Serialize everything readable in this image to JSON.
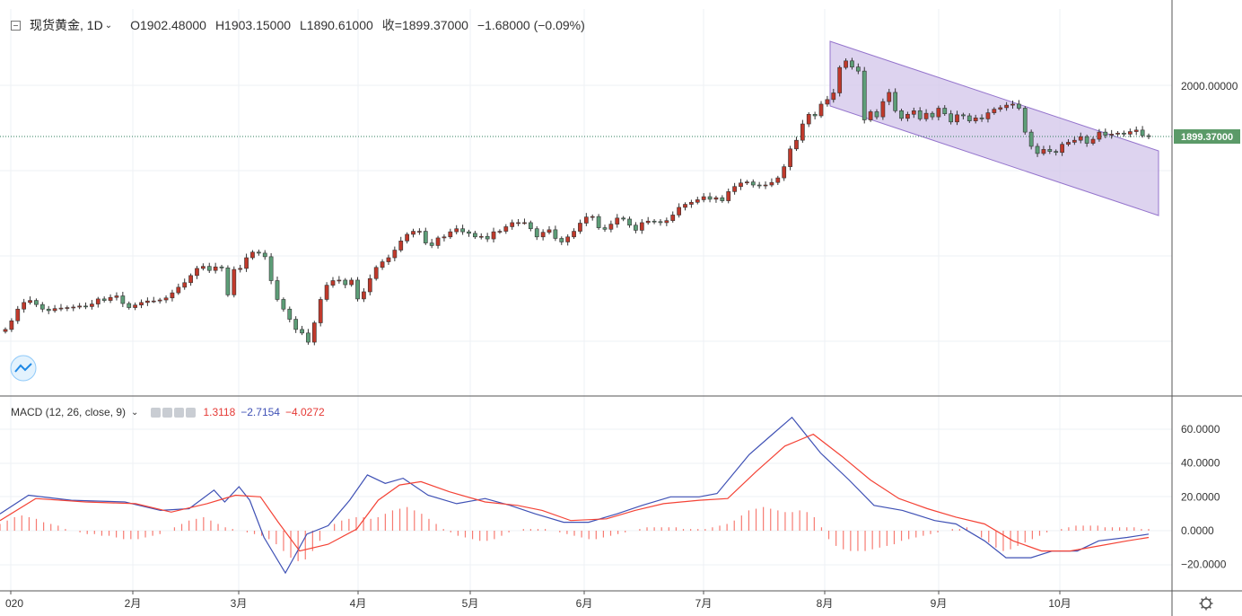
{
  "header": {
    "symbol": "现货黄金, 1D",
    "open": "O1902.48000",
    "high": "H1903.15000",
    "low": "L1890.61000",
    "close": "收=1899.37000",
    "change": "−1.68000 (−0.09%)"
  },
  "macd_header": {
    "label": "MACD (12, 26, close, 9)",
    "v1": "1.3118",
    "v2": "−2.7154",
    "v3": "−4.0272"
  },
  "price_axis": {
    "ticks": [
      "2000.00000"
    ],
    "last_label": "1899.37000"
  },
  "macd_axis": {
    "ticks": [
      "60.0000",
      "40.0000",
      "20.0000",
      "0.0000",
      "−20.0000"
    ]
  },
  "time_axis": {
    "ticks": [
      "020",
      "2月",
      "3月",
      "4月",
      "5月",
      "6月",
      "7月",
      "8月",
      "9月",
      "10月"
    ]
  },
  "colors": {
    "up": "#26a69a",
    "down": "#ef5350",
    "body_up": "#c0392b",
    "channel": "#d1c4e9",
    "macd_line": "#3f51b5",
    "signal_line": "#f44336",
    "last_price_bg": "#5b9a68"
  },
  "chart_data": [
    {
      "type": "candlestick",
      "title": "现货黄金, 1D",
      "ylabel": "",
      "ylim": [
        1450,
        2080
      ],
      "last_price": 1899.37,
      "series": [
        {
          "name": "现货黄金",
          "values": [
            1520,
            1537,
            1560,
            1573,
            1577,
            1569,
            1560,
            1557,
            1561,
            1562,
            1563,
            1564,
            1566,
            1565,
            1570,
            1580,
            1577,
            1583,
            1586,
            1571,
            1563,
            1568,
            1573,
            1576,
            1576,
            1578,
            1582,
            1592,
            1603,
            1612,
            1626,
            1640,
            1644,
            1636,
            1643,
            1641,
            1588,
            1638,
            1640,
            1661,
            1672,
            1670,
            1663,
            1616,
            1579,
            1560,
            1540,
            1520,
            1513,
            1495,
            1533,
            1579,
            1607,
            1616,
            1617,
            1608,
            1617,
            1580,
            1594,
            1620,
            1642,
            1653,
            1661,
            1676,
            1694,
            1707,
            1713,
            1713,
            1690,
            1685,
            1700,
            1702,
            1712,
            1718,
            1712,
            1709,
            1702,
            1703,
            1698,
            1712,
            1713,
            1722,
            1730,
            1730,
            1730,
            1718,
            1702,
            1711,
            1716,
            1699,
            1692,
            1702,
            1713,
            1729,
            1741,
            1742,
            1720,
            1717,
            1727,
            1739,
            1737,
            1725,
            1715,
            1730,
            1733,
            1732,
            1730,
            1734,
            1745,
            1760,
            1766,
            1770,
            1775,
            1781,
            1776,
            1779,
            1773,
            1791,
            1801,
            1808,
            1810,
            1804,
            1803,
            1804,
            1809,
            1818,
            1840,
            1875,
            1892,
            1924,
            1943,
            1940,
            1963,
            1972,
            1985,
            2035,
            2048,
            2036,
            2028,
            1932,
            1948,
            1938,
            1968,
            1986,
            1950,
            1935,
            1943,
            1950,
            1934,
            1945,
            1938,
            1955,
            1944,
            1928,
            1942,
            1940,
            1930,
            1936,
            1934,
            1946,
            1953,
            1956,
            1961,
            1963,
            1955,
            1908,
            1880,
            1866,
            1874,
            1870,
            1868,
            1884,
            1888,
            1892,
            1899,
            1886,
            1894,
            1908,
            1902,
            1904,
            1906,
            1904,
            1909,
            1912,
            1901,
            1899
          ]
        }
      ]
    },
    {
      "type": "line",
      "title": "MACD (12, 26, close, 9)",
      "ylim": [
        -28,
        68
      ],
      "series": [
        {
          "name": "MACD",
          "points": [
            [
              0,
              10
            ],
            [
              8,
              21
            ],
            [
              20,
              18
            ],
            [
              35,
              17
            ],
            [
              45,
              12
            ],
            [
              53,
              13
            ],
            [
              60,
              24
            ],
            [
              63,
              17
            ],
            [
              67,
              26
            ],
            [
              70,
              18
            ],
            [
              74,
              -4
            ],
            [
              80,
              -25
            ],
            [
              86,
              -2
            ],
            [
              92,
              3
            ],
            [
              98,
              18
            ],
            [
              103,
              33
            ],
            [
              108,
              28
            ],
            [
              113,
              31
            ],
            [
              120,
              21
            ],
            [
              128,
              16
            ],
            [
              136,
              19
            ],
            [
              143,
              15
            ],
            [
              150,
              10
            ],
            [
              158,
              5
            ],
            [
              165,
              5
            ],
            [
              173,
              10
            ],
            [
              180,
              15
            ],
            [
              188,
              20
            ],
            [
              196,
              20
            ],
            [
              201,
              22
            ],
            [
              210,
              45
            ],
            [
              216,
              56
            ],
            [
              222,
              67
            ],
            [
              230,
              46
            ],
            [
              238,
              30
            ],
            [
              245,
              15
            ],
            [
              253,
              12
            ],
            [
              262,
              6
            ],
            [
              268,
              4
            ],
            [
              276,
              -6
            ],
            [
              282,
              -16
            ],
            [
              289,
              -16
            ],
            [
              295,
              -12
            ],
            [
              302,
              -12
            ],
            [
              308,
              -6
            ],
            [
              316,
              -4
            ],
            [
              322,
              -2
            ]
          ]
        },
        {
          "name": "Signal",
          "points": [
            [
              0,
              6
            ],
            [
              10,
              19
            ],
            [
              24,
              17
            ],
            [
              38,
              16
            ],
            [
              48,
              11
            ],
            [
              58,
              16
            ],
            [
              66,
              21
            ],
            [
              73,
              20
            ],
            [
              78,
              5
            ],
            [
              84,
              -12
            ],
            [
              92,
              -8
            ],
            [
              100,
              1
            ],
            [
              106,
              18
            ],
            [
              112,
              27
            ],
            [
              118,
              29
            ],
            [
              126,
              23
            ],
            [
              136,
              17
            ],
            [
              145,
              15
            ],
            [
              152,
              12
            ],
            [
              160,
              6
            ],
            [
              170,
              7
            ],
            [
              178,
              12
            ],
            [
              186,
              16
            ],
            [
              196,
              18
            ],
            [
              204,
              19
            ],
            [
              212,
              35
            ],
            [
              220,
              50
            ],
            [
              228,
              57
            ],
            [
              236,
              44
            ],
            [
              244,
              30
            ],
            [
              252,
              19
            ],
            [
              260,
              13
            ],
            [
              268,
              8
            ],
            [
              276,
              4
            ],
            [
              284,
              -6
            ],
            [
              292,
              -12
            ],
            [
              300,
              -12
            ],
            [
              308,
              -9
            ],
            [
              316,
              -6
            ],
            [
              322,
              -4
            ]
          ]
        }
      ],
      "histogram": [
        4,
        6,
        8,
        9,
        8,
        7,
        5,
        4,
        3,
        1,
        0,
        -1,
        -2,
        -2,
        -3,
        -3,
        -4,
        -5,
        -5,
        -5,
        -4,
        -3,
        -2,
        0,
        2,
        4,
        6,
        7,
        8,
        6,
        4,
        2,
        1,
        0,
        -1,
        -2,
        -3,
        -5,
        -8,
        -12,
        -16,
        -18,
        -17,
        -12,
        -6,
        0,
        4,
        6,
        7,
        8,
        8,
        7,
        8,
        10,
        12,
        13,
        14,
        12,
        10,
        7,
        4,
        1,
        -1,
        -3,
        -4,
        -5,
        -6,
        -6,
        -5,
        -3,
        -1,
        0,
        1,
        1,
        1,
        1,
        0,
        -1,
        -2,
        -3,
        -4,
        -5,
        -5,
        -4,
        -3,
        -2,
        -1,
        0,
        1,
        2,
        2,
        2,
        2,
        2,
        1,
        1,
        1,
        1,
        2,
        3,
        4,
        6,
        9,
        12,
        13,
        14,
        13,
        12,
        11,
        11,
        12,
        11,
        8,
        2,
        -5,
        -9,
        -11,
        -12,
        -12,
        -12,
        -11,
        -10,
        -9,
        -8,
        -6,
        -5,
        -4,
        -3,
        -2,
        -1,
        0,
        1,
        1,
        2,
        0,
        -4,
        -7,
        -10,
        -12,
        -11,
        -9,
        -7,
        -5,
        -3,
        -1,
        0,
        1,
        2,
        3,
        3,
        3,
        3,
        2,
        2,
        2,
        2,
        2,
        1,
        1
      ]
    }
  ]
}
